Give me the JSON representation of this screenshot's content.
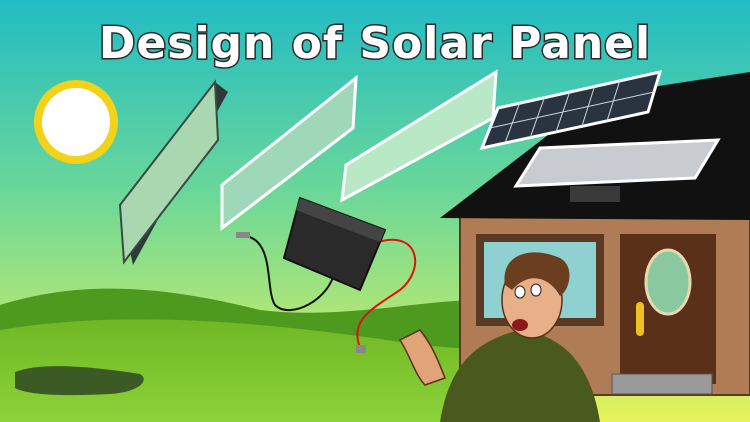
{
  "title": "Design of Solar Panel"
}
